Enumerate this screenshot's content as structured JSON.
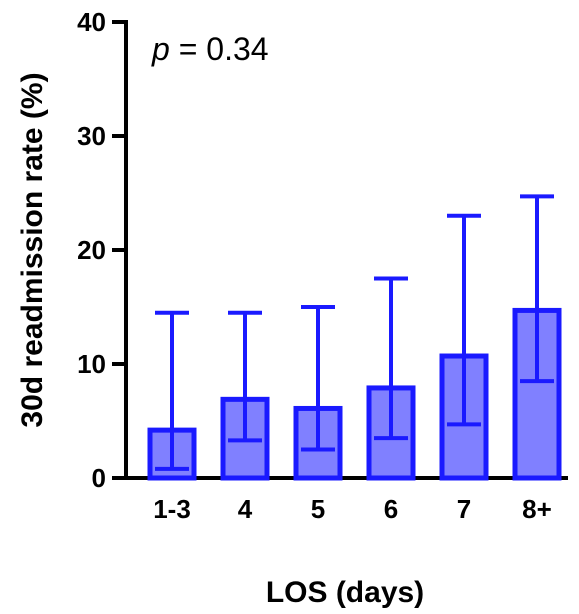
{
  "chart_data": {
    "type": "bar",
    "categories": [
      "1-3",
      "4",
      "5",
      "6",
      "7",
      "8+"
    ],
    "values": [
      4.2,
      6.9,
      6.1,
      7.9,
      10.7,
      14.7
    ],
    "error_low": [
      0.8,
      3.3,
      2.5,
      3.5,
      4.7,
      8.5
    ],
    "error_high": [
      14.5,
      14.5,
      15.0,
      17.5,
      23.0,
      24.7
    ],
    "xlabel": "LOS (days)",
    "ylabel": "30d readmission rate (%)",
    "ylim": [
      0,
      40
    ],
    "yticks": [
      0,
      10,
      20,
      30,
      40
    ],
    "grid": false,
    "annotation": {
      "italic": "p",
      "rest": " = 0.34"
    },
    "colors": {
      "bar_fill": "#8080ff",
      "bar_stroke": "#1a1aff",
      "error_bar": "#1a1aff",
      "axis": "#000000"
    }
  }
}
